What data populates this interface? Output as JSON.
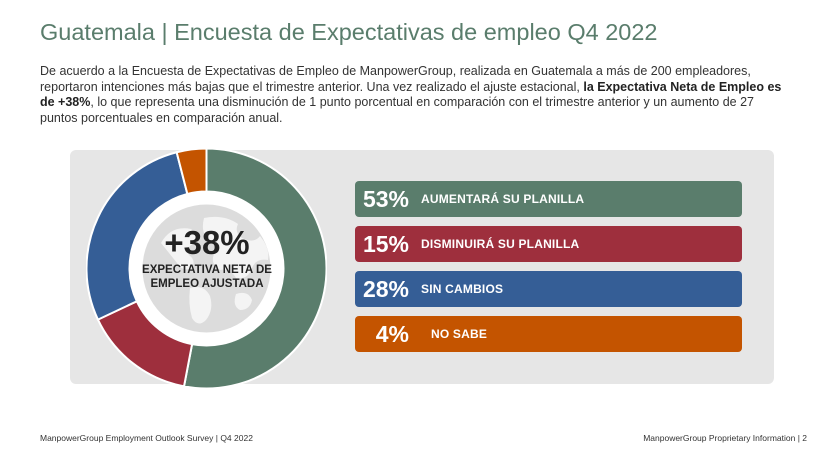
{
  "header": {
    "title": "Guatemala | Encuesta de Expectativas de empleo Q4 2022"
  },
  "intro": {
    "part1": "De acuerdo a la Encuesta de Expectativas de Empleo de ManpowerGroup, realizada en Guatemala a más de 200 empleadores, reportaron intenciones más bajas que el trimestre anterior. Una vez realizado el ajuste estacional, ",
    "bold": "la Expectativa Neta de Empleo es de +38%",
    "part2": ", lo que representa una disminución de 1 punto porcentual en comparación con el trimestre anterior y un aumento de 27 puntos porcentuales en comparación anual."
  },
  "chart_data": {
    "type": "pie",
    "center_value": "+38%",
    "center_label": "EXPECTATIVA NETA DE EMPLEO AJUSTADA",
    "categories": [
      "AUMENTARÁ SU PLANILLA",
      "DISMINUIRÁ SU PLANILLA",
      "SIN CAMBIOS",
      "NO SABE"
    ],
    "values": [
      53,
      15,
      28,
      4
    ],
    "labels": [
      "53%",
      "15%",
      "28%",
      "4%"
    ],
    "colors": [
      "#5a7d6c",
      "#9e2f3d",
      "#355e96",
      "#c45400"
    ]
  },
  "footer": {
    "left": "ManpowerGroup Employment Outlook Survey  |  Q4 2022",
    "right": "ManpowerGroup Proprietary Information  |  2"
  }
}
